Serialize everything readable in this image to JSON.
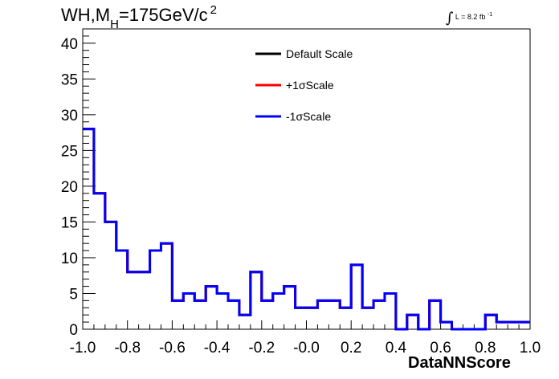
{
  "title": {
    "main": "WH,M",
    "subscript": "H",
    "rest": "=175GeV/c",
    "superscript": "2"
  },
  "luminosity": {
    "integral": "∫",
    "text": "L = 8.2 fb",
    "exponent": "-1"
  },
  "chart_data": {
    "type": "line",
    "style": "step-histogram",
    "xlabel": "DataNNScore",
    "ylabel": "",
    "xlim": [
      -1.0,
      1.0
    ],
    "ylim": [
      0,
      42
    ],
    "xticks": [
      "-1.0",
      "-0.8",
      "-0.6",
      "-0.4",
      "-0.2",
      "-0.0",
      "0.2",
      "0.4",
      "0.6",
      "0.8",
      "1.0"
    ],
    "yticks": [
      "0",
      "5",
      "10",
      "15",
      "20",
      "25",
      "30",
      "35",
      "40"
    ],
    "bin_edges": [
      -1.0,
      -0.95,
      -0.9,
      -0.85,
      -0.8,
      -0.75,
      -0.7,
      -0.65,
      -0.6,
      -0.55,
      -0.5,
      -0.45,
      -0.4,
      -0.35,
      -0.3,
      -0.25,
      -0.2,
      -0.15,
      -0.1,
      -0.05,
      0.0,
      0.05,
      0.1,
      0.15,
      0.2,
      0.25,
      0.3,
      0.35,
      0.4,
      0.45,
      0.5,
      0.55,
      0.6,
      0.65,
      0.7,
      0.75,
      0.8,
      0.85,
      0.9,
      0.95,
      1.0
    ],
    "series": [
      {
        "name": "Default Scale",
        "color": "#000000",
        "values": [
          28,
          19,
          15,
          11,
          8,
          8,
          11,
          12,
          4,
          5,
          4,
          6,
          5,
          4,
          2,
          8,
          4,
          5,
          6,
          3,
          3,
          4,
          4,
          3,
          9,
          3,
          4,
          5,
          0,
          2,
          0,
          4,
          1,
          0,
          0,
          0,
          2,
          1,
          1,
          1
        ]
      },
      {
        "name": "+1σScale",
        "color": "#ff0000",
        "values": [
          28,
          19,
          15,
          11,
          8,
          8,
          11,
          12,
          4,
          5,
          4,
          6,
          5,
          4,
          2,
          8,
          4,
          5,
          6,
          3,
          3,
          4,
          4,
          3,
          9,
          3,
          4,
          5,
          0,
          2,
          0,
          4,
          1,
          0,
          0,
          0,
          2,
          1,
          1,
          1
        ]
      },
      {
        "name": "-1σScale",
        "color": "#0000ff",
        "values": [
          28,
          19,
          15,
          11,
          8,
          8,
          11,
          12,
          4,
          5,
          4,
          6,
          5,
          4,
          2,
          8,
          4,
          5,
          6,
          3,
          3,
          4,
          4,
          3,
          9,
          3,
          4,
          5,
          0,
          2,
          0,
          4,
          1,
          0,
          0,
          0,
          2,
          1,
          1,
          1
        ]
      }
    ],
    "legend_position": "top-center",
    "grid": false
  }
}
